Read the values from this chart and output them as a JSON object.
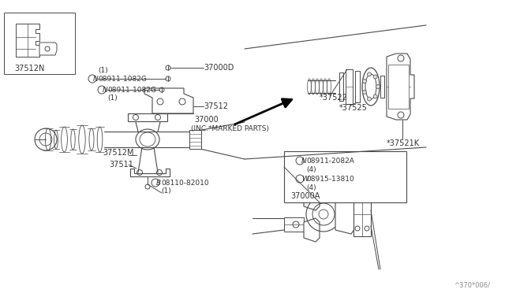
{
  "bg_color": "#ffffff",
  "line_color": "#4a4a4a",
  "text_color": "#333333",
  "watermark": "^370*006/",
  "labels": {
    "B_part": "B",
    "B_num": "08110-82010",
    "B_qty": "(1)",
    "37511": "37511",
    "37512M": "37512M",
    "37512N": "37512N",
    "37000A": "37000A",
    "N_num1": "N",
    "N_part1": "08911-2082A",
    "N_qty1": "(4)",
    "W_num": "W",
    "W_part": "08915-13810",
    "W_qty": "(4)",
    "37000_main": "37000",
    "37000_sub": "(INC.*MARKED PARTS)",
    "37512": "37512",
    "N_num2": "N",
    "N_part2": "08911-1082G",
    "N_qty2": "(1)",
    "N_num3": "N",
    "N_part3": "08911-1082G",
    "N_qty3": "(1)",
    "37000D": "37000D",
    "37521K": "*37521K",
    "37525": "*37525",
    "37522": "*37522"
  }
}
